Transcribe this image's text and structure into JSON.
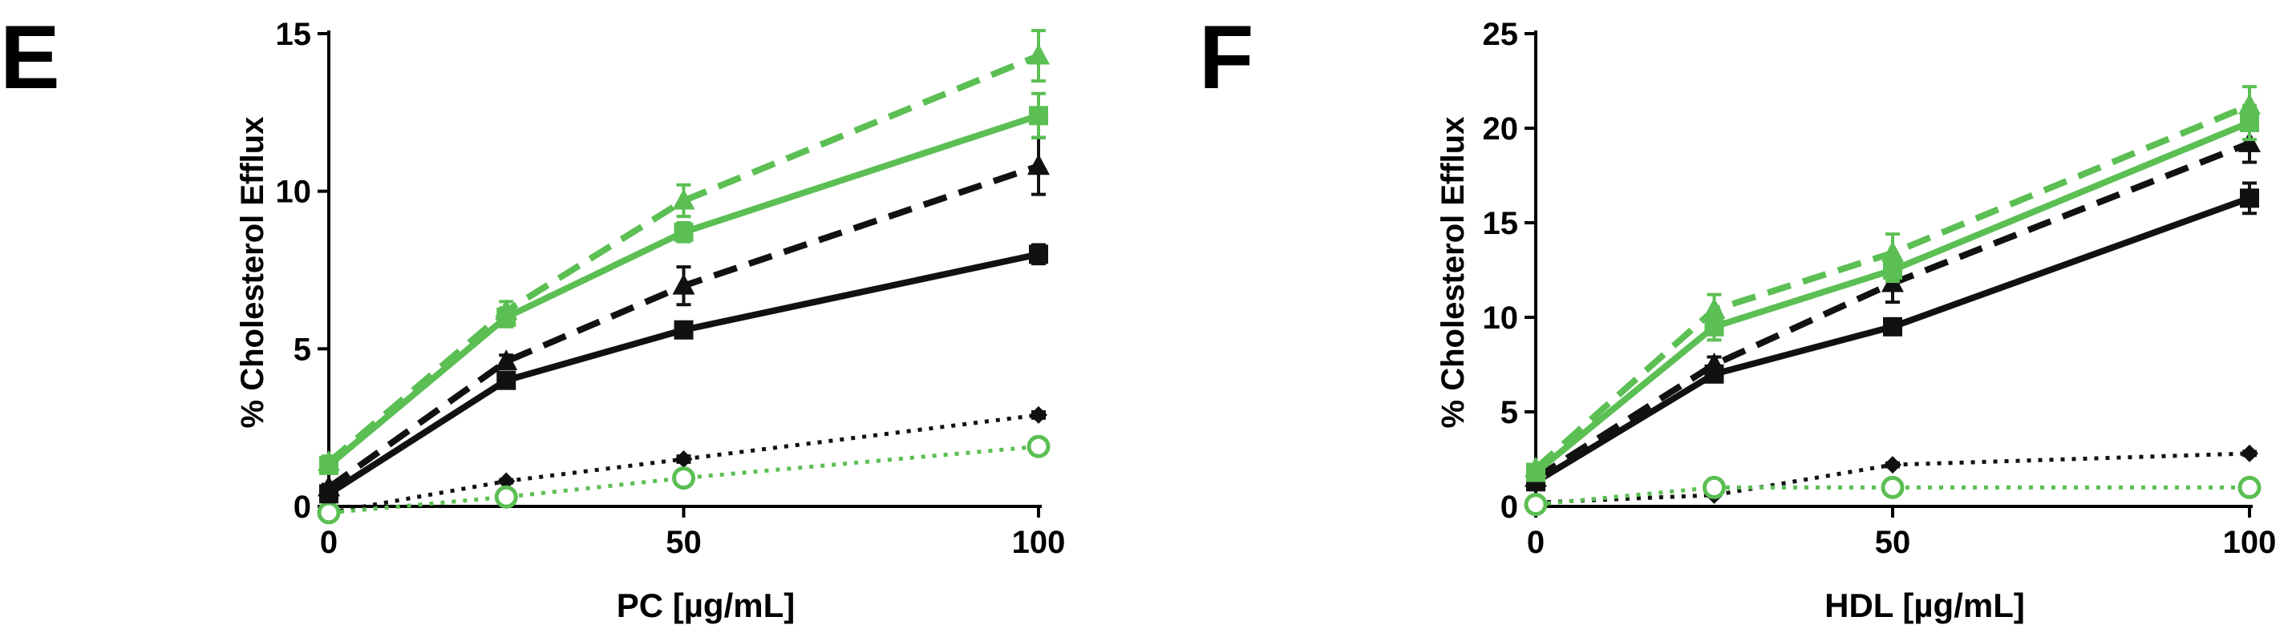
{
  "panels": [
    {
      "letter": "E",
      "xlabel": "PC [µg/mL]",
      "ylabel": "% Cholesterol Efflux"
    },
    {
      "letter": "F",
      "xlabel": "HDL [µg/mL]",
      "ylabel": "% Cholesterol Efflux"
    }
  ],
  "chart_data": [
    {
      "type": "line",
      "title": "",
      "xlabel": "PC [µg/mL]",
      "ylabel": "% Cholesterol Efflux",
      "xlim": [
        0,
        100
      ],
      "ylim": [
        0,
        15
      ],
      "xticks": [
        0,
        50,
        100
      ],
      "yticks": [
        0,
        5,
        10,
        15
      ],
      "grid": false,
      "legend": "none",
      "x": [
        0,
        25,
        50,
        100
      ],
      "series": [
        {
          "values": [
            1.4,
            6.2,
            9.7,
            14.3
          ],
          "error": [
            0.2,
            0.3,
            0.5,
            0.8
          ],
          "color": "#5bbf53",
          "line": "dashed",
          "marker": "triangle"
        },
        {
          "values": [
            1.3,
            6.0,
            8.7,
            12.4
          ],
          "error": [
            0.2,
            0.3,
            0.3,
            0.7
          ],
          "color": "#5bbf53",
          "line": "solid",
          "marker": "square"
        },
        {
          "values": [
            0.6,
            4.6,
            7.0,
            10.8
          ],
          "error": [
            0.1,
            0.2,
            0.6,
            0.9
          ],
          "color": "#111111",
          "line": "dashed",
          "marker": "triangle"
        },
        {
          "values": [
            0.4,
            4.0,
            5.6,
            8.0
          ],
          "error": [
            0.1,
            0.2,
            0.2,
            0.3
          ],
          "color": "#111111",
          "line": "solid",
          "marker": "square"
        },
        {
          "values": [
            -0.2,
            0.8,
            1.5,
            2.9
          ],
          "error": [
            0.05,
            0.05,
            0.1,
            0.1
          ],
          "color": "#111111",
          "line": "dotted",
          "marker": "diamond"
        },
        {
          "values": [
            -0.2,
            0.3,
            0.9,
            1.9
          ],
          "error": [
            0.05,
            0.05,
            0.1,
            0.15
          ],
          "color": "#5bbf53",
          "line": "dotted",
          "marker": "circle-open"
        }
      ]
    },
    {
      "type": "line",
      "title": "",
      "xlabel": "HDL [µg/mL]",
      "ylabel": "% Cholesterol Efflux",
      "xlim": [
        0,
        100
      ],
      "ylim": [
        0,
        25
      ],
      "xticks": [
        0,
        50,
        100
      ],
      "yticks": [
        0,
        5,
        10,
        15,
        20,
        25
      ],
      "grid": false,
      "legend": "none",
      "x": [
        0,
        25,
        50,
        100
      ],
      "series": [
        {
          "values": [
            2.0,
            10.4,
            13.4,
            21.2
          ],
          "error": [
            0.2,
            0.8,
            1.0,
            1.0
          ],
          "color": "#5bbf53",
          "line": "dashed",
          "marker": "triangle"
        },
        {
          "values": [
            1.8,
            9.5,
            12.5,
            20.3
          ],
          "error": [
            0.2,
            0.7,
            0.6,
            0.9
          ],
          "color": "#5bbf53",
          "line": "solid",
          "marker": "square"
        },
        {
          "values": [
            1.5,
            7.5,
            11.8,
            19.2
          ],
          "error": [
            0.2,
            0.4,
            1.0,
            1.0
          ],
          "color": "#111111",
          "line": "dashed",
          "marker": "triangle"
        },
        {
          "values": [
            1.3,
            7.0,
            9.5,
            16.3
          ],
          "error": [
            0.2,
            0.3,
            0.3,
            0.8
          ],
          "color": "#111111",
          "line": "solid",
          "marker": "square"
        },
        {
          "values": [
            0.2,
            0.6,
            2.2,
            2.8
          ],
          "error": [
            0.05,
            0.05,
            0.1,
            0.1
          ],
          "color": "#111111",
          "line": "dotted",
          "marker": "diamond"
        },
        {
          "values": [
            0.1,
            1.0,
            1.0,
            1.0
          ],
          "error": [
            0.05,
            0.1,
            0.1,
            0.1
          ],
          "color": "#5bbf53",
          "line": "dotted",
          "marker": "circle-open"
        }
      ]
    }
  ]
}
